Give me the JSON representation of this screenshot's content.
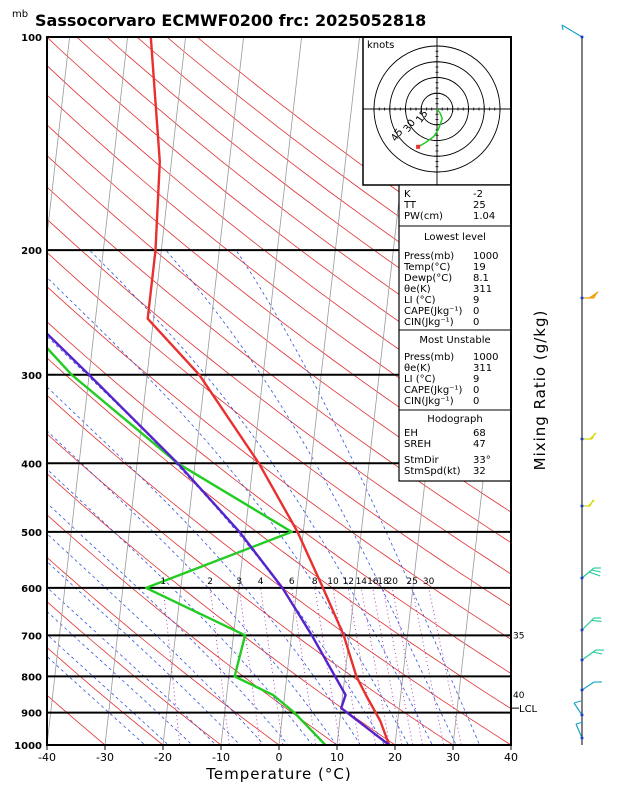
{
  "header": {
    "unit_label": "mb",
    "title": "Sassocorvaro ECMWF0200 frc: 2025052818"
  },
  "axes": {
    "xlabel": "Temperature (°C)",
    "mixing_ratio_label": "Mixing Ratio (g/kg)",
    "x_ticks": [
      -40,
      -30,
      -20,
      -10,
      0,
      10,
      20,
      30,
      40
    ],
    "p_ticks": [
      100,
      200,
      300,
      400,
      500,
      600,
      700,
      800,
      900,
      1000
    ],
    "mixing_ratio_values": [
      "1",
      "2",
      "3",
      "4",
      "6",
      "8",
      "10",
      "12",
      "14",
      "16",
      "18",
      "20",
      "25",
      "30"
    ],
    "side_labels": [
      "35",
      "40"
    ],
    "lcl_label": "LCL",
    "lcl_pressure": 887
  },
  "hodograph": {
    "unit_label": "knots",
    "ring_labels": [
      "15",
      "30",
      "45"
    ]
  },
  "indices": {
    "basic": [
      {
        "label": "K",
        "value": "-2"
      },
      {
        "label": "TT",
        "value": "25"
      },
      {
        "label": "PW(cm)",
        "value": "1.04"
      }
    ],
    "lowest_level": {
      "title": "Lowest level",
      "rows": [
        {
          "label": "Press(mb)",
          "value": "1000"
        },
        {
          "label": "Temp(°C)",
          "value": "19"
        },
        {
          "label": "Dewp(°C)",
          "value": "8.1"
        },
        {
          "label": "θe(K)",
          "value": "311"
        },
        {
          "label": "LI (°C)",
          "value": "9"
        },
        {
          "label": "CAPE(Jkg⁻¹)",
          "value": "0"
        },
        {
          "label": "CIN(Jkg⁻¹)",
          "value": "0"
        }
      ]
    },
    "most_unstable": {
      "title": "Most Unstable",
      "rows": [
        {
          "label": "Press(mb)",
          "value": "1000"
        },
        {
          "label": "θe(K)",
          "value": "311"
        },
        {
          "label": "LI (°C)",
          "value": "9"
        },
        {
          "label": "CAPE(Jkg⁻¹)",
          "value": "0"
        },
        {
          "label": "CIN(Jkg⁻¹)",
          "value": "0"
        }
      ]
    },
    "hodograph_params": {
      "title": "Hodograph",
      "rows": [
        {
          "label": "EH",
          "value": "68"
        },
        {
          "label": "SREH",
          "value": "47"
        }
      ],
      "rows2": [
        {
          "label": "StmDir",
          "value": "33°"
        },
        {
          "label": "StmSpd(kt)",
          "value": "32"
        }
      ]
    }
  },
  "chart_data": {
    "type": "line",
    "x_axis": "temperature_C",
    "y_axis": "pressure_hPa_log",
    "xlim": [
      -40,
      40
    ],
    "plim": [
      1000,
      100
    ],
    "series": [
      {
        "color": "#e8302f",
        "points": [
          [
            1000,
            19
          ],
          [
            925,
            17
          ],
          [
            850,
            14
          ],
          [
            800,
            12
          ],
          [
            700,
            9
          ],
          [
            600,
            4.5
          ],
          [
            500,
            -1
          ],
          [
            400,
            -9
          ],
          [
            300,
            -21
          ],
          [
            250,
            -31
          ],
          [
            200,
            -31
          ],
          [
            150,
            -32
          ],
          [
            100,
            -36
          ]
        ]
      },
      {
        "color": "#22cc22",
        "points": [
          [
            1000,
            8
          ],
          [
            900,
            2
          ],
          [
            850,
            -2
          ],
          [
            800,
            -9
          ],
          [
            700,
            -8
          ],
          [
            600,
            -26
          ],
          [
            500,
            -2
          ],
          [
            400,
            -23
          ],
          [
            300,
            -43
          ],
          [
            250,
            -53
          ],
          [
            200,
            -58
          ],
          [
            150,
            -66
          ],
          [
            100,
            -77
          ]
        ]
      },
      {
        "color": "#5522cc",
        "points": [
          [
            1000,
            19
          ],
          [
            887,
            10
          ],
          [
            850,
            10.5
          ],
          [
            700,
            3.5
          ],
          [
            600,
            -2.5
          ],
          [
            500,
            -11
          ],
          [
            400,
            -23
          ],
          [
            300,
            -40
          ],
          [
            250,
            -51
          ],
          [
            200,
            -63
          ],
          [
            150,
            -78
          ],
          [
            112,
            -93
          ]
        ]
      }
    ]
  }
}
